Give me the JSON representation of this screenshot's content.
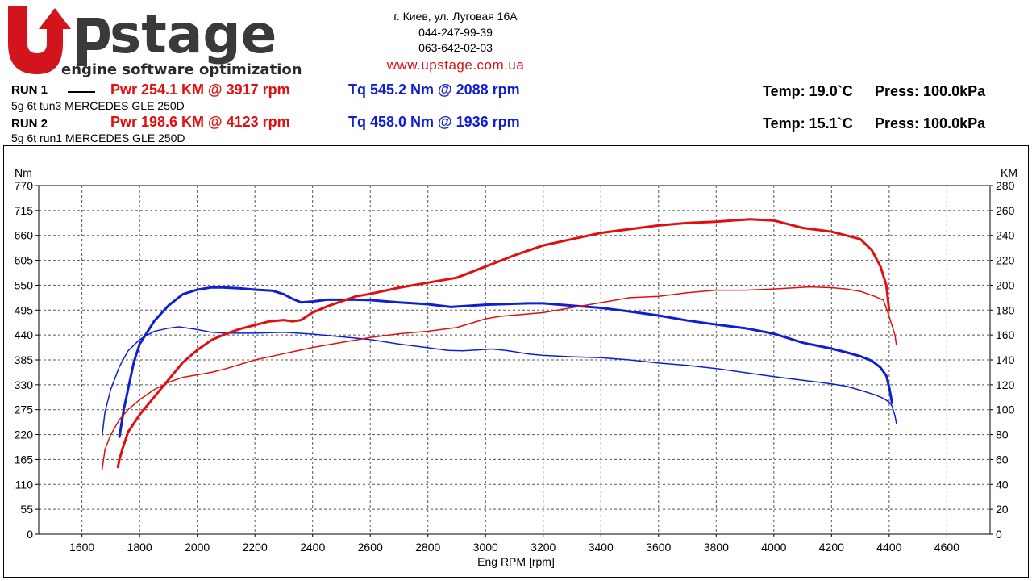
{
  "header": {
    "logo_text_main": "stage",
    "logo_text_sub": "engine software optimization",
    "address": "г. Киев, ул. Луговая 16А",
    "phone1": "044-247-99-39",
    "phone2": "063-642-02-03",
    "website": "www.upstage.com.ua"
  },
  "runs": [
    {
      "label": "RUN 1",
      "pwr": "Pwr  254.1 KM @ 3917 rpm",
      "tq": "Tq 545.2 Nm @ 2088 rpm",
      "temp": "Temp: 19.0`C",
      "press": "Press: 100.0kPa",
      "desc": "5g 6t tun3 MERCEDES GLE 250D"
    },
    {
      "label": "RUN 2",
      "pwr": "Pwr  198.6 KM @ 4123 rpm",
      "tq": "Tq 458.0 Nm @ 1936 rpm",
      "temp": "Temp: 15.1`C",
      "press": "Press: 100.0kPa",
      "desc": "5g 6t run1 MERCEDES GLE 250D"
    }
  ],
  "colors": {
    "power": "#e01010",
    "torque": "#1020d0",
    "brand_red": "#d4141c",
    "brand_dark": "#3a3a3a"
  },
  "chart_data": {
    "type": "line",
    "xlabel": "Eng RPM [rpm]",
    "ylabel_left": "Nm",
    "ylabel_right": "KM",
    "xlim": [
      1450,
      4750
    ],
    "ylim_left": [
      0,
      770
    ],
    "ylim_right": [
      0,
      280
    ],
    "x_ticks": [
      1600,
      1800,
      2000,
      2200,
      2400,
      2600,
      2800,
      3000,
      3200,
      3400,
      3600,
      3800,
      4000,
      4200,
      4400,
      4600
    ],
    "y_left_ticks": [
      0,
      55,
      110,
      165,
      220,
      275,
      330,
      385,
      440,
      495,
      550,
      605,
      660,
      715,
      770
    ],
    "y_right_ticks": [
      0,
      20,
      40,
      60,
      80,
      100,
      120,
      140,
      160,
      180,
      200,
      220,
      240,
      260,
      280
    ],
    "grid": true,
    "series": [
      {
        "name": "RUN 1 Tq",
        "axis": "left",
        "color": "#1020d0",
        "width": 3,
        "points": [
          [
            1730,
            215
          ],
          [
            1745,
            275
          ],
          [
            1760,
            320
          ],
          [
            1780,
            380
          ],
          [
            1800,
            420
          ],
          [
            1850,
            470
          ],
          [
            1900,
            505
          ],
          [
            1950,
            530
          ],
          [
            2000,
            540
          ],
          [
            2050,
            545
          ],
          [
            2088,
            545
          ],
          [
            2150,
            543
          ],
          [
            2200,
            540
          ],
          [
            2260,
            538
          ],
          [
            2300,
            530
          ],
          [
            2330,
            520
          ],
          [
            2360,
            512
          ],
          [
            2400,
            514
          ],
          [
            2450,
            518
          ],
          [
            2500,
            518
          ],
          [
            2550,
            518
          ],
          [
            2600,
            517
          ],
          [
            2700,
            512
          ],
          [
            2800,
            508
          ],
          [
            2880,
            502
          ],
          [
            2950,
            505
          ],
          [
            3000,
            507
          ],
          [
            3050,
            508
          ],
          [
            3150,
            510
          ],
          [
            3200,
            510
          ],
          [
            3300,
            505
          ],
          [
            3400,
            500
          ],
          [
            3500,
            492
          ],
          [
            3600,
            483
          ],
          [
            3700,
            472
          ],
          [
            3800,
            463
          ],
          [
            3900,
            455
          ],
          [
            4000,
            443
          ],
          [
            4100,
            423
          ],
          [
            4200,
            410
          ],
          [
            4250,
            402
          ],
          [
            4300,
            393
          ],
          [
            4340,
            383
          ],
          [
            4370,
            368
          ],
          [
            4390,
            350
          ],
          [
            4400,
            325
          ],
          [
            4410,
            290
          ]
        ]
      },
      {
        "name": "RUN 2 Tq",
        "axis": "left",
        "color": "#1020d0",
        "width": 1.5,
        "points": [
          [
            1670,
            218
          ],
          [
            1680,
            270
          ],
          [
            1700,
            320
          ],
          [
            1730,
            370
          ],
          [
            1760,
            405
          ],
          [
            1800,
            430
          ],
          [
            1850,
            448
          ],
          [
            1900,
            455
          ],
          [
            1936,
            458
          ],
          [
            2000,
            452
          ],
          [
            2050,
            446
          ],
          [
            2100,
            444
          ],
          [
            2200,
            444
          ],
          [
            2300,
            446
          ],
          [
            2400,
            442
          ],
          [
            2500,
            436
          ],
          [
            2600,
            430
          ],
          [
            2700,
            420
          ],
          [
            2800,
            412
          ],
          [
            2870,
            406
          ],
          [
            2920,
            405
          ],
          [
            2970,
            407
          ],
          [
            3020,
            409
          ],
          [
            3070,
            406
          ],
          [
            3150,
            398
          ],
          [
            3200,
            395
          ],
          [
            3300,
            392
          ],
          [
            3400,
            390
          ],
          [
            3500,
            385
          ],
          [
            3600,
            378
          ],
          [
            3700,
            373
          ],
          [
            3800,
            366
          ],
          [
            3900,
            357
          ],
          [
            4000,
            348
          ],
          [
            4100,
            340
          ],
          [
            4200,
            332
          ],
          [
            4250,
            327
          ],
          [
            4300,
            318
          ],
          [
            4350,
            308
          ],
          [
            4380,
            300
          ],
          [
            4400,
            292
          ],
          [
            4410,
            283
          ],
          [
            4420,
            262
          ],
          [
            4425,
            245
          ]
        ]
      },
      {
        "name": "RUN 1 Pwr",
        "axis": "right",
        "color": "#e01010",
        "width": 3,
        "points": [
          [
            1725,
            54
          ],
          [
            1730,
            60
          ],
          [
            1740,
            68
          ],
          [
            1760,
            82
          ],
          [
            1800,
            96
          ],
          [
            1850,
            110
          ],
          [
            1900,
            124
          ],
          [
            1950,
            138
          ],
          [
            2000,
            148
          ],
          [
            2050,
            156
          ],
          [
            2100,
            161
          ],
          [
            2150,
            165
          ],
          [
            2200,
            168
          ],
          [
            2250,
            171
          ],
          [
            2300,
            172
          ],
          [
            2330,
            171
          ],
          [
            2360,
            172
          ],
          [
            2400,
            178
          ],
          [
            2450,
            183
          ],
          [
            2500,
            187
          ],
          [
            2550,
            191
          ],
          [
            2600,
            193
          ],
          [
            2700,
            198
          ],
          [
            2800,
            202
          ],
          [
            2900,
            206
          ],
          [
            3000,
            215
          ],
          [
            3100,
            224
          ],
          [
            3200,
            232
          ],
          [
            3300,
            237
          ],
          [
            3400,
            242
          ],
          [
            3500,
            245
          ],
          [
            3600,
            248
          ],
          [
            3700,
            250
          ],
          [
            3800,
            251
          ],
          [
            3917,
            253
          ],
          [
            4000,
            252
          ],
          [
            4050,
            249
          ],
          [
            4100,
            246
          ],
          [
            4200,
            243
          ],
          [
            4250,
            240
          ],
          [
            4300,
            237
          ],
          [
            4340,
            228
          ],
          [
            4370,
            215
          ],
          [
            4390,
            200
          ],
          [
            4400,
            180
          ]
        ]
      },
      {
        "name": "RUN 2 Pwr",
        "axis": "right",
        "color": "#e01010",
        "width": 1.5,
        "points": [
          [
            1670,
            52
          ],
          [
            1680,
            68
          ],
          [
            1700,
            80
          ],
          [
            1730,
            92
          ],
          [
            1760,
            100
          ],
          [
            1800,
            108
          ],
          [
            1850,
            116
          ],
          [
            1900,
            122
          ],
          [
            1950,
            126
          ],
          [
            2000,
            128
          ],
          [
            2050,
            130
          ],
          [
            2100,
            133
          ],
          [
            2200,
            140
          ],
          [
            2300,
            145
          ],
          [
            2400,
            150
          ],
          [
            2500,
            154
          ],
          [
            2600,
            158
          ],
          [
            2700,
            161
          ],
          [
            2800,
            163
          ],
          [
            2900,
            166
          ],
          [
            3000,
            173
          ],
          [
            3050,
            175
          ],
          [
            3100,
            176
          ],
          [
            3200,
            178
          ],
          [
            3300,
            182
          ],
          [
            3400,
            186
          ],
          [
            3500,
            190
          ],
          [
            3600,
            191
          ],
          [
            3700,
            194
          ],
          [
            3800,
            196
          ],
          [
            3900,
            196
          ],
          [
            4000,
            197
          ],
          [
            4123,
            198.6
          ],
          [
            4200,
            198
          ],
          [
            4250,
            197
          ],
          [
            4300,
            195
          ],
          [
            4350,
            191
          ],
          [
            4380,
            188
          ],
          [
            4400,
            175
          ],
          [
            4420,
            160
          ],
          [
            4425,
            152
          ]
        ]
      }
    ]
  }
}
